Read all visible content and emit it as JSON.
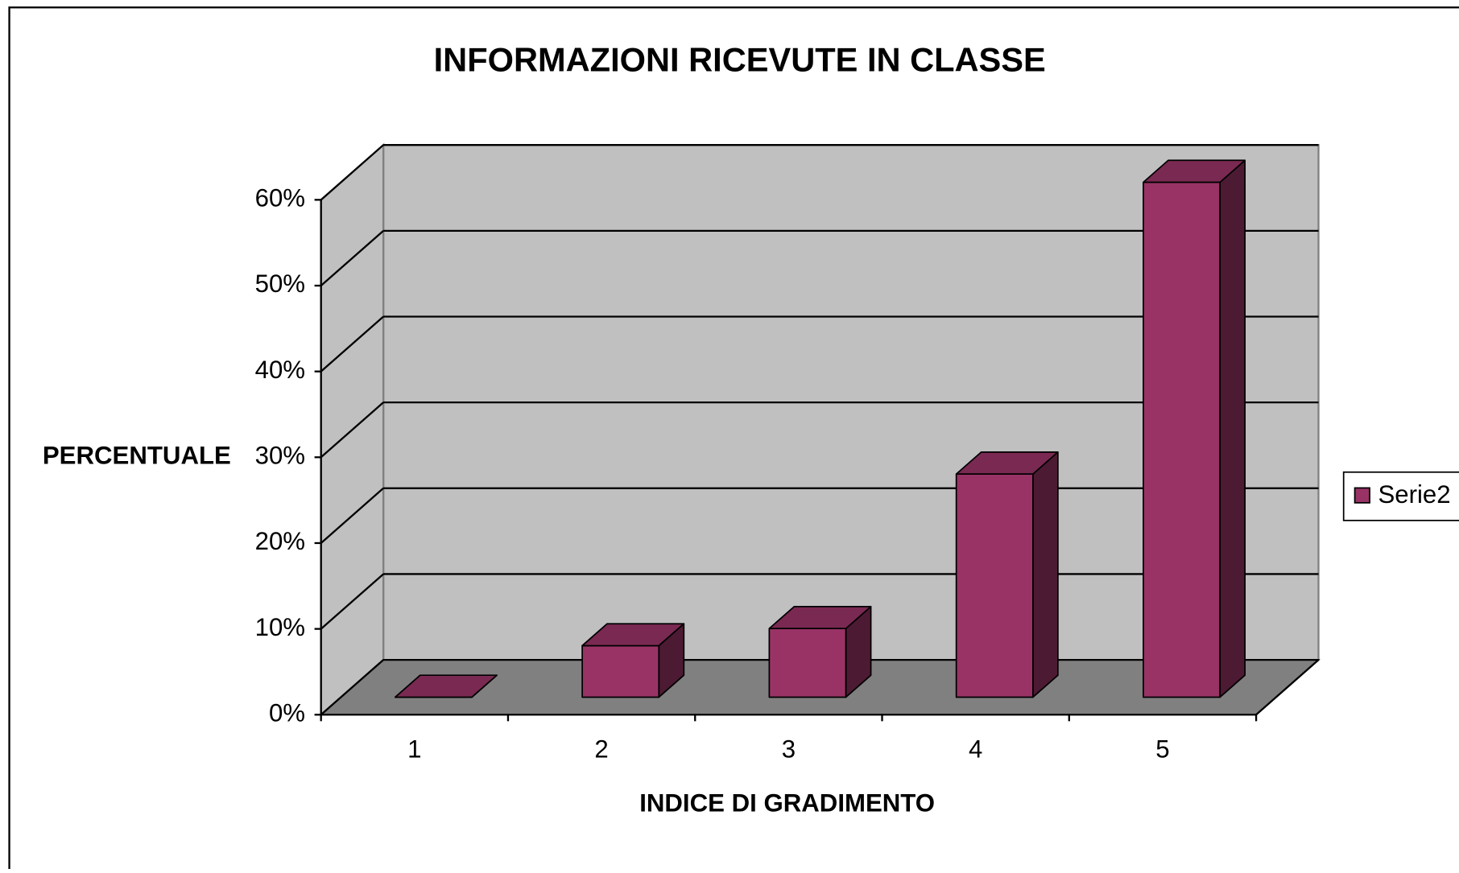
{
  "chart_data": {
    "type": "bar3d",
    "title": "INFORMAZIONI RICEVUTE IN CLASSE",
    "x_label": "INDICE DI GRADIMENTO",
    "y_label": "PERCENTUALE",
    "categories": [
      "1",
      "2",
      "3",
      "4",
      "5"
    ],
    "series": [
      {
        "name": "Serie2",
        "color": "#993366",
        "values": [
          0,
          6,
          8,
          26,
          60
        ]
      }
    ],
    "ylim": [
      0,
      60
    ],
    "yticks": [
      {
        "value": 0,
        "label": "0%"
      },
      {
        "value": 10,
        "label": "10%"
      },
      {
        "value": 20,
        "label": "20%"
      },
      {
        "value": 30,
        "label": "30%"
      },
      {
        "value": 40,
        "label": "40%"
      },
      {
        "value": 50,
        "label": "50%"
      },
      {
        "value": 60,
        "label": "60%"
      }
    ],
    "grid": true,
    "legend": "right"
  }
}
